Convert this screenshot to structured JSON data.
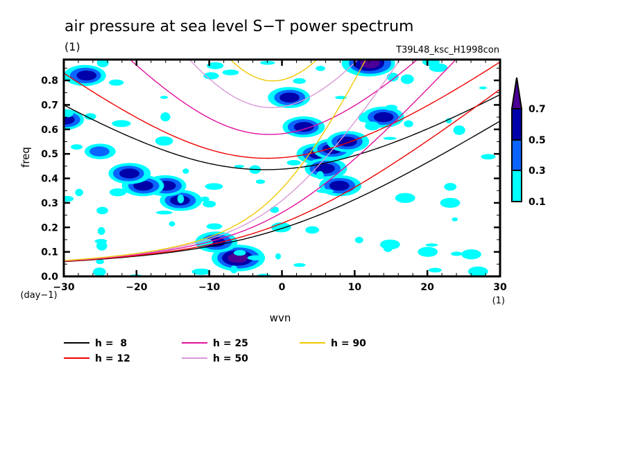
{
  "chart_data": {
    "type": "contour",
    "title": "air pressure at sea level S−T power spectrum",
    "subtitle_left": "(1)",
    "subtitle_right": "T39L48_ksc_H1998con",
    "xlabel": "wvn",
    "ylabel": "freq",
    "x_unit": "(1)",
    "y_unit": "(day−1)",
    "xlim": [
      -30,
      30
    ],
    "ylim": [
      0.0,
      0.885
    ],
    "x_ticks": [
      "−30",
      "−20",
      "−10",
      "0",
      "10",
      "20",
      "30"
    ],
    "x_tick_values": [
      -30,
      -20,
      -10,
      0,
      10,
      20,
      30
    ],
    "y_ticks": [
      "0.0",
      "0.1",
      "0.2",
      "0.3",
      "0.4",
      "0.5",
      "0.6",
      "0.7",
      "0.8"
    ],
    "y_tick_values": [
      0,
      0.1,
      0.2,
      0.3,
      0.4,
      0.5,
      0.6,
      0.7,
      0.8
    ],
    "colorbar": {
      "levels": [
        "0.1",
        "0.3",
        "0.5",
        "0.7"
      ],
      "level_values": [
        0.1,
        0.3,
        0.5,
        0.7
      ],
      "colors": [
        "#00ffff",
        "#0a64ff",
        "#0000aa",
        "#4b0096"
      ]
    },
    "dispersion_curves": [
      {
        "label": "h =  8",
        "h": 8,
        "color": "#000000"
      },
      {
        "label": "h = 12",
        "h": 12,
        "color": "#ee0000"
      },
      {
        "label": "h = 25",
        "h": 25,
        "color": "#e0119d"
      },
      {
        "label": "h = 50",
        "h": 50,
        "color": "#d898d8"
      },
      {
        "label": "h = 90",
        "h": 90,
        "color": "#f0c800"
      }
    ],
    "power_patches": [
      {
        "wvn": -6,
        "freq": 0.075,
        "level": 0.7
      },
      {
        "wvn": -9,
        "freq": 0.14,
        "level": 0.5
      },
      {
        "wvn": -14,
        "freq": 0.31,
        "level": 0.5
      },
      {
        "wvn": -16,
        "freq": 0.37,
        "level": 0.5
      },
      {
        "wvn": -19,
        "freq": 0.37,
        "level": 0.5
      },
      {
        "wvn": -21,
        "freq": 0.42,
        "level": 0.5
      },
      {
        "wvn": -25,
        "freq": 0.51,
        "level": 0.3
      },
      {
        "wvn": -30,
        "freq": 0.64,
        "level": 0.5
      },
      {
        "wvn": -27,
        "freq": 0.82,
        "level": 0.5
      },
      {
        "wvn": 5,
        "freq": 0.5,
        "level": 0.5
      },
      {
        "wvn": 6,
        "freq": 0.44,
        "level": 0.5
      },
      {
        "wvn": 7,
        "freq": 0.52,
        "level": 0.5
      },
      {
        "wvn": 8,
        "freq": 0.37,
        "level": 0.5
      },
      {
        "wvn": 9,
        "freq": 0.55,
        "level": 0.5
      },
      {
        "wvn": 12,
        "freq": 0.87,
        "level": 0.7
      },
      {
        "wvn": 3,
        "freq": 0.61,
        "level": 0.5
      },
      {
        "wvn": 1,
        "freq": 0.73,
        "level": 0.5
      },
      {
        "wvn": 14,
        "freq": 0.65,
        "level": 0.5
      },
      {
        "wvn": 0,
        "freq": 0.2,
        "level": 0.1
      },
      {
        "wvn": 15,
        "freq": 0.13,
        "level": 0.1
      },
      {
        "wvn": 27,
        "freq": 0.02,
        "level": 0.1
      },
      {
        "wvn": 20,
        "freq": 0.1,
        "level": 0.1
      },
      {
        "wvn": 26,
        "freq": 0.09,
        "level": 0.1
      },
      {
        "wvn": 23,
        "freq": 0.3,
        "level": 0.1
      },
      {
        "wvn": 17,
        "freq": 0.32,
        "level": 0.1
      }
    ]
  },
  "legend": {
    "items": [
      "h =  8",
      "h = 12",
      "h = 25",
      "h = 50",
      "h = 90"
    ]
  }
}
